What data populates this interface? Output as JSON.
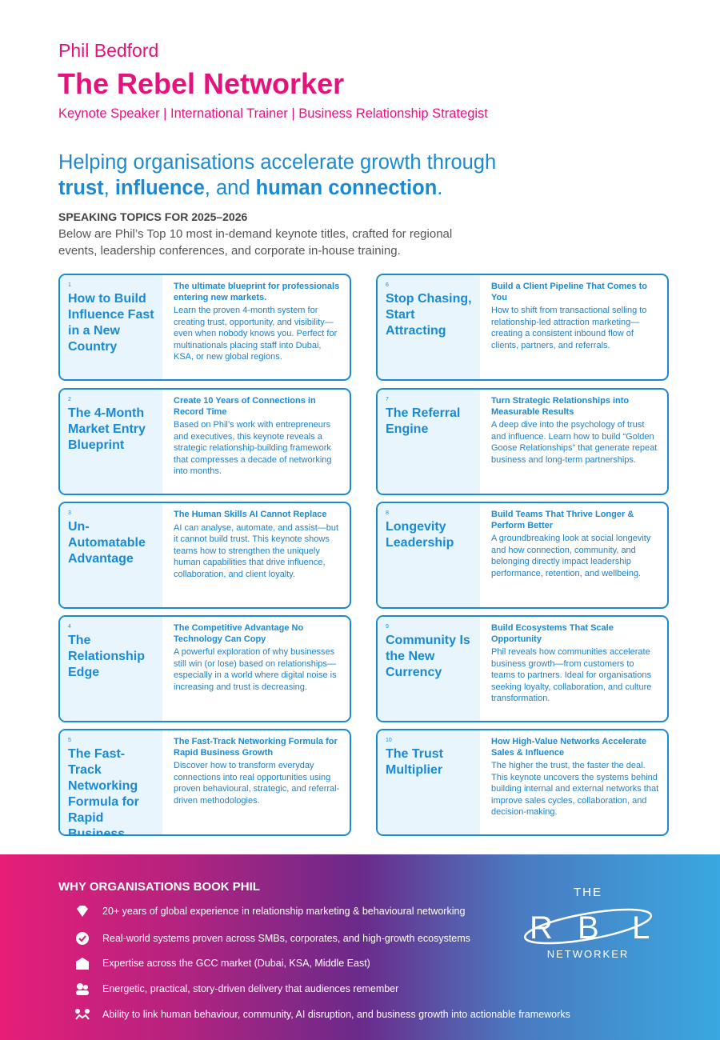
{
  "header": {
    "name": "Phil Bedford",
    "title": "The Rebel Networker",
    "tagline": "Keynote Speaker | International Trainer | Business Relationship Strategist"
  },
  "mission": {
    "line1": "Helping organisations accelerate growth through",
    "line2": [
      {
        "text": "trust",
        "bold": true
      },
      {
        "text": ", ",
        "bold": false
      },
      {
        "text": "influence",
        "bold": true
      },
      {
        "text": ", and ",
        "bold": false
      },
      {
        "text": "human connection",
        "bold": true
      },
      {
        "text": ".",
        "bold": false
      }
    ]
  },
  "topics": {
    "heading": "SPEAKING TOPICS FOR 2025–2026",
    "intro": "Below are Phil’s Top 10 most in-demand keynote titles, crafted for regional events, leadership conferences, and corporate in-house training.",
    "cards": [
      {
        "number": 1,
        "title": "How to Build Influence Fast in a New Country",
        "subtitle": "The ultimate blueprint for professionals entering new markets.",
        "body": "Learn the proven 4-month system for creating trust, opportunity, and visibility—even when nobody knows you. Perfect for multinationals placing staff into Dubai, KSA, or new global regions."
      },
      {
        "number": 2,
        "title": "The 4-Month Market Entry Blueprint",
        "subtitle": "Create 10 Years of Connections in Record Time",
        "body": "Based on Phil’s work with entrepreneurs and executives, this keynote reveals a strategic relationship-building framework that compresses a decade of networking into months."
      },
      {
        "number": 3,
        "title": "Un-Automatable Advantage",
        "subtitle": "The Human Skills AI Cannot Replace",
        "body": "AI can analyse, automate, and assist—but it cannot build trust. This keynote shows teams how to strengthen the uniquely human capabilities that drive influence, collaboration, and client loyalty."
      },
      {
        "number": 4,
        "title": "The Relationship Edge",
        "subtitle": "The Competitive Advantage No Technology Can Copy",
        "body": "A powerful exploration of why businesses still win (or lose) based on relationships—especially in a world where digital noise is increasing and trust is decreasing."
      },
      {
        "number": 5,
        "title": "The Fast-Track Networking Formula for Rapid Business Growth",
        "subtitle": "The Fast-Track Networking Formula for Rapid Business Growth",
        "body": "Discover how to transform everyday connections into real opportunities using proven behavioural, strategic, and referral-driven methodologies."
      },
      {
        "number": 6,
        "title": "Stop Chasing, Start Attracting",
        "subtitle": "Build a Client Pipeline That Comes to You",
        "body": "How to shift from transactional selling to relationship-led attraction marketing—creating a consistent inbound flow of clients, partners, and referrals."
      },
      {
        "number": 7,
        "title": "The Referral Engine",
        "subtitle": "Turn Strategic Relationships into Measurable Results",
        "body": "A deep dive into the psychology of trust and influence. Learn how to build “Golden Goose Relationships” that generate repeat business and long-term partnerships."
      },
      {
        "number": 8,
        "title": "Longevity Leadership",
        "subtitle": "Build Teams That Thrive Longer & Perform Better",
        "body": "A groundbreaking look at social longevity and how connection, community, and belonging directly impact leadership performance, retention, and wellbeing."
      },
      {
        "number": 9,
        "title": "Community Is the New Currency",
        "subtitle": "Build Ecosystems That Scale Opportunity",
        "body": "Phil reveals how communities accelerate business growth—from customers to teams to partners. Ideal for organisations seeking loyalty, collaboration, and culture transformation."
      },
      {
        "number": 10,
        "title": "The Trust Multiplier",
        "subtitle": "How High-Value Networks Accelerate Sales & Influence",
        "body": "The higher the trust, the faster the deal. This keynote uncovers the systems behind building internal and external networks that improve sales cycles, collaboration, and decision-making."
      }
    ]
  },
  "footer": {
    "heading": "WHY ORGANISATIONS BOOK PHIL",
    "items": [
      "20+ years of global experience in relationship marketing & behavioural networking",
      "Real-world systems proven across SMBs, corporates, and high-growth ecosystems",
      "Expertise across the GCC market (Dubai, KSA, Middle East)",
      "Energetic, practical, story-driven delivery that audiences remember",
      "Ability to link human behaviour, community, AI disruption, and business growth into actionable frameworks"
    ],
    "logo": {
      "top": "THE",
      "letters": [
        "R",
        "B",
        "L"
      ],
      "bottom": "NETWORKER"
    }
  }
}
